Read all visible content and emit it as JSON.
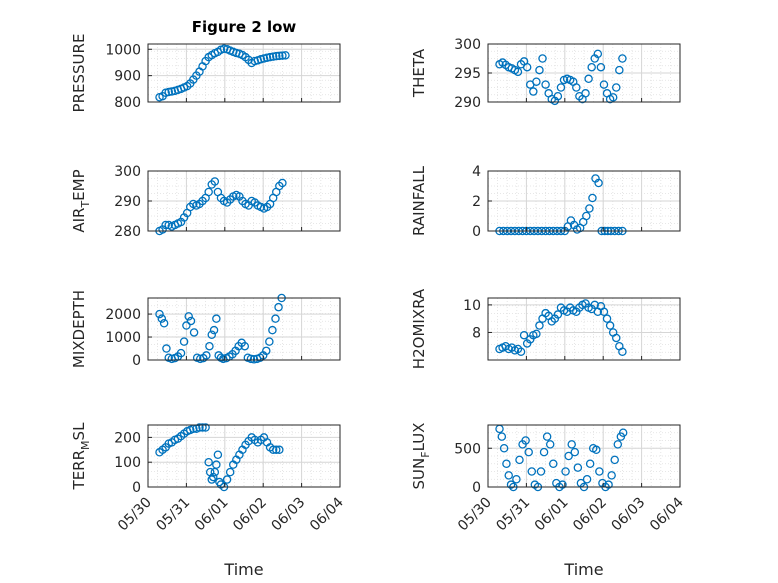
{
  "colors": {
    "marker": "#0072BD",
    "axis": "#262626",
    "grid": "#dfdfdf"
  },
  "figure": {
    "title": "Figure 2 low"
  },
  "chart_data": [
    {
      "type": "scatter",
      "title": "Figure 2 low",
      "ylabel": "PRESSURE",
      "ylabel_sub": "",
      "ylabel_after": "",
      "xlabel": "",
      "xlim": [
        0,
        5
      ],
      "ylim": [
        800,
        1020
      ],
      "yticks": [
        800,
        900,
        1000
      ],
      "xtick_labels": [],
      "grid": true,
      "x": [
        0.3,
        0.38,
        0.46,
        0.54,
        0.62,
        0.7,
        0.78,
        0.86,
        0.94,
        1.02,
        1.1,
        1.18,
        1.26,
        1.34,
        1.42,
        1.5,
        1.58,
        1.66,
        1.74,
        1.82,
        1.9,
        1.98,
        2.06,
        2.14,
        2.22,
        2.3,
        2.38,
        2.46,
        2.54,
        2.62,
        2.7,
        2.78,
        2.86,
        2.94,
        3.02,
        3.1,
        3.18,
        3.26,
        3.34,
        3.42,
        3.5,
        3.58
      ],
      "y": [
        818,
        822,
        835,
        838,
        840,
        842,
        846,
        850,
        855,
        860,
        870,
        885,
        900,
        915,
        935,
        955,
        970,
        978,
        985,
        990,
        998,
        1002,
        1000,
        995,
        990,
        986,
        983,
        978,
        970,
        960,
        948,
        955,
        958,
        962,
        965,
        968,
        970,
        972,
        974,
        975,
        976,
        977
      ]
    },
    {
      "type": "scatter",
      "title": "",
      "ylabel": "THETA",
      "ylabel_sub": "",
      "ylabel_after": "",
      "xlabel": "",
      "xlim": [
        0,
        5
      ],
      "ylim": [
        290,
        300
      ],
      "yticks": [
        290,
        295,
        300
      ],
      "xtick_labels": [],
      "grid": true,
      "x": [
        0.3,
        0.38,
        0.46,
        0.54,
        0.62,
        0.7,
        0.78,
        0.86,
        0.94,
        1.02,
        1.1,
        1.18,
        1.26,
        1.34,
        1.42,
        1.5,
        1.58,
        1.66,
        1.74,
        1.82,
        1.9,
        1.98,
        2.06,
        2.14,
        2.22,
        2.3,
        2.38,
        2.46,
        2.54,
        2.62,
        2.7,
        2.78,
        2.86,
        2.94,
        3.02,
        3.1,
        3.18,
        3.26,
        3.34,
        3.42,
        3.5
      ],
      "y": [
        296.5,
        296.8,
        296.4,
        296.0,
        295.8,
        295.5,
        295.2,
        296.5,
        297.0,
        296.0,
        293.0,
        291.8,
        293.5,
        295.5,
        297.5,
        293.0,
        291.5,
        290.5,
        290.2,
        291.0,
        292.5,
        293.8,
        294.0,
        293.8,
        293.5,
        292.5,
        291.0,
        290.5,
        291.5,
        294.0,
        296.0,
        297.5,
        298.3,
        296.0,
        293.0,
        291.5,
        290.5,
        290.8,
        292.5,
        295.5,
        297.5
      ]
    },
    {
      "type": "scatter",
      "title": "",
      "ylabel": "AIR",
      "ylabel_sub": "T",
      "ylabel_after": "EMP",
      "xlabel": "",
      "xlim": [
        0,
        5
      ],
      "ylim": [
        280,
        300
      ],
      "yticks": [
        280,
        290,
        300
      ],
      "xtick_labels": [],
      "grid": true,
      "x": [
        0.3,
        0.38,
        0.46,
        0.54,
        0.62,
        0.7,
        0.78,
        0.86,
        0.94,
        1.02,
        1.1,
        1.18,
        1.26,
        1.34,
        1.42,
        1.5,
        1.58,
        1.66,
        1.74,
        1.82,
        1.9,
        1.98,
        2.06,
        2.14,
        2.22,
        2.3,
        2.38,
        2.46,
        2.54,
        2.62,
        2.7,
        2.78,
        2.86,
        2.94,
        3.02,
        3.1,
        3.18,
        3.26,
        3.34,
        3.42,
        3.5
      ],
      "y": [
        280,
        280.5,
        282,
        282,
        281.5,
        282,
        282.5,
        283,
        284.5,
        286,
        288,
        289,
        288.5,
        289,
        290,
        291,
        293,
        295.5,
        296.5,
        293,
        291,
        290,
        289.5,
        290.5,
        291.5,
        292,
        291.5,
        290,
        289,
        288.5,
        290,
        289.5,
        288.5,
        288,
        287.5,
        288,
        289,
        291,
        293,
        295,
        296
      ]
    },
    {
      "type": "scatter",
      "title": "",
      "ylabel": "RAINFALL",
      "ylabel_sub": "",
      "ylabel_after": "",
      "xlabel": "",
      "xlim": [
        0,
        5
      ],
      "ylim": [
        0,
        4
      ],
      "yticks": [
        0,
        2,
        4
      ],
      "xtick_labels": [],
      "grid": true,
      "x": [
        0.3,
        0.4,
        0.5,
        0.6,
        0.7,
        0.8,
        0.9,
        1.0,
        1.1,
        1.2,
        1.3,
        1.4,
        1.5,
        1.6,
        1.7,
        1.8,
        1.9,
        2.0,
        2.08,
        2.16,
        2.24,
        2.32,
        2.4,
        2.48,
        2.56,
        2.64,
        2.72,
        2.8,
        2.88,
        2.96,
        3.04,
        3.12,
        3.2,
        3.3,
        3.4,
        3.5
      ],
      "y": [
        0,
        0,
        0,
        0,
        0,
        0,
        0,
        0,
        0,
        0,
        0,
        0,
        0,
        0,
        0,
        0,
        0,
        0,
        0.3,
        0.7,
        0.4,
        0.1,
        0.2,
        0.6,
        1.0,
        1.5,
        2.2,
        3.5,
        3.2,
        0,
        0,
        0,
        0,
        0,
        0,
        0
      ]
    },
    {
      "type": "scatter",
      "title": "",
      "ylabel": "MIXDEPTH",
      "ylabel_sub": "",
      "ylabel_after": "",
      "xlabel": "",
      "xlim": [
        0,
        5
      ],
      "ylim": [
        0,
        2700
      ],
      "yticks": [
        0,
        1000,
        2000
      ],
      "xtick_labels": [],
      "grid": true,
      "x": [
        0.3,
        0.36,
        0.42,
        0.48,
        0.54,
        0.62,
        0.7,
        0.78,
        0.86,
        0.94,
        1.0,
        1.06,
        1.12,
        1.2,
        1.28,
        1.36,
        1.44,
        1.52,
        1.6,
        1.66,
        1.72,
        1.78,
        1.84,
        1.9,
        1.96,
        2.04,
        2.12,
        2.2,
        2.28,
        2.36,
        2.44,
        2.52,
        2.6,
        2.68,
        2.76,
        2.84,
        2.92,
        3.0,
        3.08,
        3.16,
        3.24,
        3.32,
        3.4,
        3.48
      ],
      "y": [
        2000,
        1800,
        1600,
        500,
        100,
        50,
        80,
        150,
        300,
        800,
        1500,
        1900,
        1700,
        1200,
        100,
        50,
        80,
        200,
        600,
        1100,
        1300,
        1800,
        200,
        100,
        50,
        80,
        150,
        250,
        400,
        600,
        750,
        600,
        100,
        50,
        30,
        50,
        100,
        200,
        400,
        800,
        1300,
        1800,
        2300,
        2700
      ]
    },
    {
      "type": "scatter",
      "title": "",
      "ylabel": "H2OMIXRA",
      "ylabel_sub": "",
      "ylabel_after": "",
      "xlabel": "",
      "xlim": [
        0,
        5
      ],
      "ylim": [
        6,
        10.5
      ],
      "yticks": [
        8,
        10
      ],
      "xtick_labels": [],
      "grid": true,
      "x": [
        0.3,
        0.38,
        0.46,
        0.54,
        0.62,
        0.7,
        0.78,
        0.86,
        0.94,
        1.02,
        1.1,
        1.18,
        1.26,
        1.34,
        1.42,
        1.5,
        1.58,
        1.66,
        1.74,
        1.82,
        1.9,
        1.98,
        2.06,
        2.14,
        2.22,
        2.3,
        2.38,
        2.46,
        2.54,
        2.62,
        2.7,
        2.78,
        2.86,
        2.94,
        3.02,
        3.1,
        3.18,
        3.26,
        3.34,
        3.42,
        3.5
      ],
      "y": [
        6.8,
        6.9,
        7.0,
        6.8,
        6.9,
        6.7,
        6.8,
        6.6,
        7.8,
        7.2,
        7.5,
        7.8,
        7.9,
        8.5,
        9.0,
        9.4,
        9.2,
        8.8,
        9.0,
        9.3,
        9.8,
        9.6,
        9.5,
        9.8,
        9.6,
        9.5,
        9.8,
        10.0,
        10.1,
        9.8,
        9.7,
        10.0,
        9.5,
        9.9,
        9.5,
        9.0,
        8.5,
        8.0,
        7.6,
        7.0,
        6.6
      ]
    },
    {
      "type": "scatter",
      "title": "",
      "ylabel": "TERR",
      "ylabel_sub": "M",
      "ylabel_after": "SL",
      "xlabel": "Time",
      "xlim": [
        0,
        5
      ],
      "ylim": [
        0,
        250
      ],
      "yticks": [
        0,
        100,
        200
      ],
      "xtick_labels": [
        "05/30",
        "05/31",
        "06/01",
        "06/02",
        "06/03",
        "06/04"
      ],
      "grid": true,
      "x": [
        0.3,
        0.38,
        0.46,
        0.54,
        0.62,
        0.7,
        0.78,
        0.86,
        0.94,
        1.02,
        1.1,
        1.18,
        1.26,
        1.34,
        1.42,
        1.5,
        1.58,
        1.62,
        1.66,
        1.7,
        1.74,
        1.78,
        1.82,
        1.86,
        1.9,
        1.98,
        2.06,
        2.14,
        2.22,
        2.3,
        2.38,
        2.46,
        2.54,
        2.62,
        2.7,
        2.78,
        2.86,
        2.94,
        3.02,
        3.1,
        3.18,
        3.26,
        3.34,
        3.42
      ],
      "y": [
        140,
        150,
        160,
        175,
        180,
        190,
        195,
        205,
        215,
        225,
        230,
        235,
        235,
        240,
        240,
        240,
        100,
        60,
        30,
        40,
        60,
        90,
        130,
        20,
        10,
        0,
        30,
        60,
        90,
        110,
        130,
        150,
        170,
        185,
        200,
        190,
        180,
        190,
        200,
        180,
        160,
        150,
        150,
        150
      ]
    },
    {
      "type": "scatter",
      "title": "",
      "ylabel": "SUN",
      "ylabel_sub": "F",
      "ylabel_after": "LUX",
      "xlabel": "Time",
      "xlim": [
        0,
        5
      ],
      "ylim": [
        0,
        800
      ],
      "yticks": [
        0,
        500
      ],
      "xtick_labels": [
        "05/30",
        "05/31",
        "06/01",
        "06/02",
        "06/03",
        "06/04"
      ],
      "grid": true,
      "x": [
        0.3,
        0.36,
        0.42,
        0.48,
        0.54,
        0.6,
        0.66,
        0.74,
        0.82,
        0.9,
        0.98,
        1.06,
        1.14,
        1.22,
        1.3,
        1.38,
        1.46,
        1.54,
        1.62,
        1.7,
        1.78,
        1.86,
        1.94,
        2.02,
        2.1,
        2.18,
        2.26,
        2.34,
        2.42,
        2.5,
        2.58,
        2.66,
        2.74,
        2.82,
        2.9,
        2.98,
        3.06,
        3.14,
        3.22,
        3.3,
        3.38,
        3.46,
        3.52
      ],
      "y": [
        750,
        650,
        500,
        300,
        150,
        30,
        0,
        100,
        350,
        550,
        600,
        450,
        200,
        30,
        0,
        200,
        450,
        650,
        550,
        300,
        50,
        0,
        30,
        200,
        400,
        550,
        450,
        250,
        50,
        0,
        100,
        300,
        500,
        480,
        200,
        50,
        0,
        30,
        150,
        350,
        550,
        650,
        700
      ]
    }
  ]
}
